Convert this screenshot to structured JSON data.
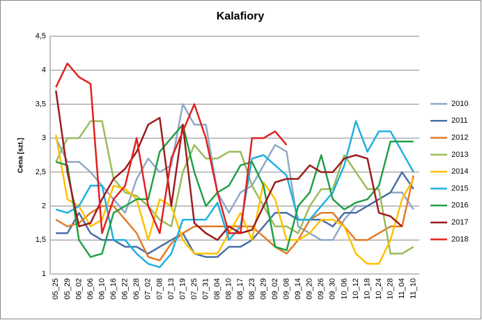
{
  "chart_data": {
    "type": "line",
    "title": "Kalafiory",
    "y_label": "Cena [szt.]",
    "categories": [
      "05_25",
      "05_29",
      "06_02",
      "06_06",
      "06_10",
      "06_16",
      "06_22",
      "06_28",
      "07_02",
      "07_08",
      "07_13",
      "07_19",
      "07_25",
      "07_31",
      "08_04",
      "08_10",
      "08_17",
      "08_23",
      "08_29",
      "09_02",
      "09_08",
      "09_14",
      "09_20",
      "09_26",
      "09_30",
      "10_06",
      "10_12",
      "10_18",
      "10_24",
      "10_28",
      "11_04",
      "11_10"
    ],
    "ylim": [
      1,
      4.5
    ],
    "yticks": [
      1,
      {
        "value": 1.5,
        "label": "1,5"
      },
      2,
      {
        "value": 2.5,
        "label": "2,5"
      },
      3,
      {
        "value": 3.5,
        "label": "3,5"
      },
      4,
      {
        "value": 4.5,
        "label": "4,5"
      }
    ],
    "grid": true,
    "legend": "right",
    "series": [
      {
        "name": "2010",
        "color": "#8fa8c8",
        "values": [
          3,
          2.65,
          2.65,
          2.5,
          2.3,
          2.1,
          1.9,
          2.4,
          2.7,
          2.5,
          2.6,
          3.5,
          3.2,
          3.2,
          2.2,
          1.9,
          2.2,
          2.3,
          2.6,
          2.9,
          2.8,
          1.7,
          1.6,
          1.5,
          1.5,
          1.8,
          2.0,
          2.0,
          2.1,
          2.2,
          2.2,
          1.95
        ]
      },
      {
        "name": "2011",
        "color": "#4a6fa5",
        "values": [
          1.6,
          1.6,
          1.9,
          1.6,
          1.5,
          1.5,
          1.4,
          1.4,
          1.3,
          1.4,
          1.5,
          1.6,
          1.3,
          1.25,
          1.25,
          1.4,
          1.4,
          1.5,
          1.7,
          1.9,
          1.9,
          1.8,
          1.8,
          1.8,
          1.7,
          1.9,
          1.9,
          2.0,
          2.1,
          2.2,
          2.5,
          2.25
        ]
      },
      {
        "name": "2012",
        "color": "#e07b2a",
        "values": [
          1.8,
          1.7,
          1.75,
          1.9,
          2.0,
          2.0,
          1.8,
          1.6,
          1.25,
          1.2,
          1.45,
          1.6,
          1.7,
          1.7,
          1.7,
          1.7,
          1.7,
          1.7,
          1.55,
          1.4,
          1.3,
          1.5,
          1.8,
          1.9,
          1.9,
          1.7,
          1.5,
          1.5,
          1.6,
          1.7,
          1.7,
          2.45
        ]
      },
      {
        "name": "2013",
        "color": "#9bbb59",
        "values": [
          2.65,
          3.0,
          3.0,
          3.25,
          3.25,
          2.4,
          2.2,
          2.15,
          2.0,
          1.8,
          1.7,
          2.5,
          2.9,
          2.7,
          2.7,
          2.8,
          2.8,
          2.3,
          2.0,
          1.7,
          1.7,
          1.6,
          2.0,
          2.25,
          2.25,
          2.75,
          2.5,
          2.25,
          2.25,
          1.3,
          1.3,
          1.4
        ]
      },
      {
        "name": "2014",
        "color": "#ffc000",
        "values": [
          3.05,
          2.1,
          2.0,
          1.7,
          1.8,
          2.3,
          2.25,
          2.1,
          1.5,
          2.1,
          2.0,
          1.5,
          1.3,
          1.3,
          1.3,
          1.6,
          1.9,
          1.5,
          2.35,
          2.1,
          1.5,
          1.5,
          1.6,
          1.8,
          1.8,
          1.7,
          1.3,
          1.15,
          1.15,
          1.5,
          2.1,
          2.4
        ]
      },
      {
        "name": "2015",
        "color": "#1fb0e0",
        "values": [
          1.95,
          1.9,
          2.0,
          2.3,
          2.3,
          1.5,
          1.5,
          1.3,
          1.15,
          1.1,
          1.3,
          1.8,
          1.8,
          1.8,
          2.05,
          1.5,
          1.7,
          2.7,
          2.75,
          2.6,
          2.45,
          1.8,
          1.8,
          2.0,
          2.2,
          2.6,
          3.25,
          2.8,
          3.1,
          3.1,
          2.8,
          2.5
        ]
      },
      {
        "name": "2016",
        "color": "#21a047",
        "values": [
          2.65,
          2.6,
          1.5,
          1.25,
          1.3,
          1.9,
          2.0,
          2.1,
          2.1,
          2.8,
          3.0,
          3.2,
          2.5,
          2.0,
          2.2,
          2.3,
          2.6,
          2.65,
          2.3,
          1.4,
          1.35,
          2.0,
          2.2,
          2.75,
          2.1,
          1.95,
          2.05,
          2.1,
          2.3,
          2.95,
          2.95,
          2.95
        ]
      },
      {
        "name": "2017",
        "color": "#9c1c1c",
        "values": [
          3.7,
          2.5,
          1.7,
          1.75,
          2.1,
          2.4,
          2.55,
          2.8,
          3.2,
          3.3,
          2.0,
          3.2,
          1.75,
          1.6,
          1.5,
          1.7,
          1.6,
          1.65,
          2.0,
          2.35,
          2.4,
          2.4,
          2.6,
          2.5,
          2.5,
          2.7,
          2.75,
          2.7,
          1.9,
          1.85,
          1.7,
          null
        ]
      },
      {
        "name": "2018",
        "color": "#e02020",
        "values": [
          3.75,
          4.1,
          3.9,
          3.8,
          1.6,
          2.1,
          2.3,
          3.0,
          2.0,
          1.6,
          2.7,
          3.1,
          3.5,
          3.0,
          2.2,
          1.6,
          1.6,
          3.0,
          3.0,
          3.1,
          2.9,
          null,
          null,
          null,
          null,
          null,
          null,
          null,
          null,
          null,
          null,
          null
        ]
      }
    ]
  }
}
